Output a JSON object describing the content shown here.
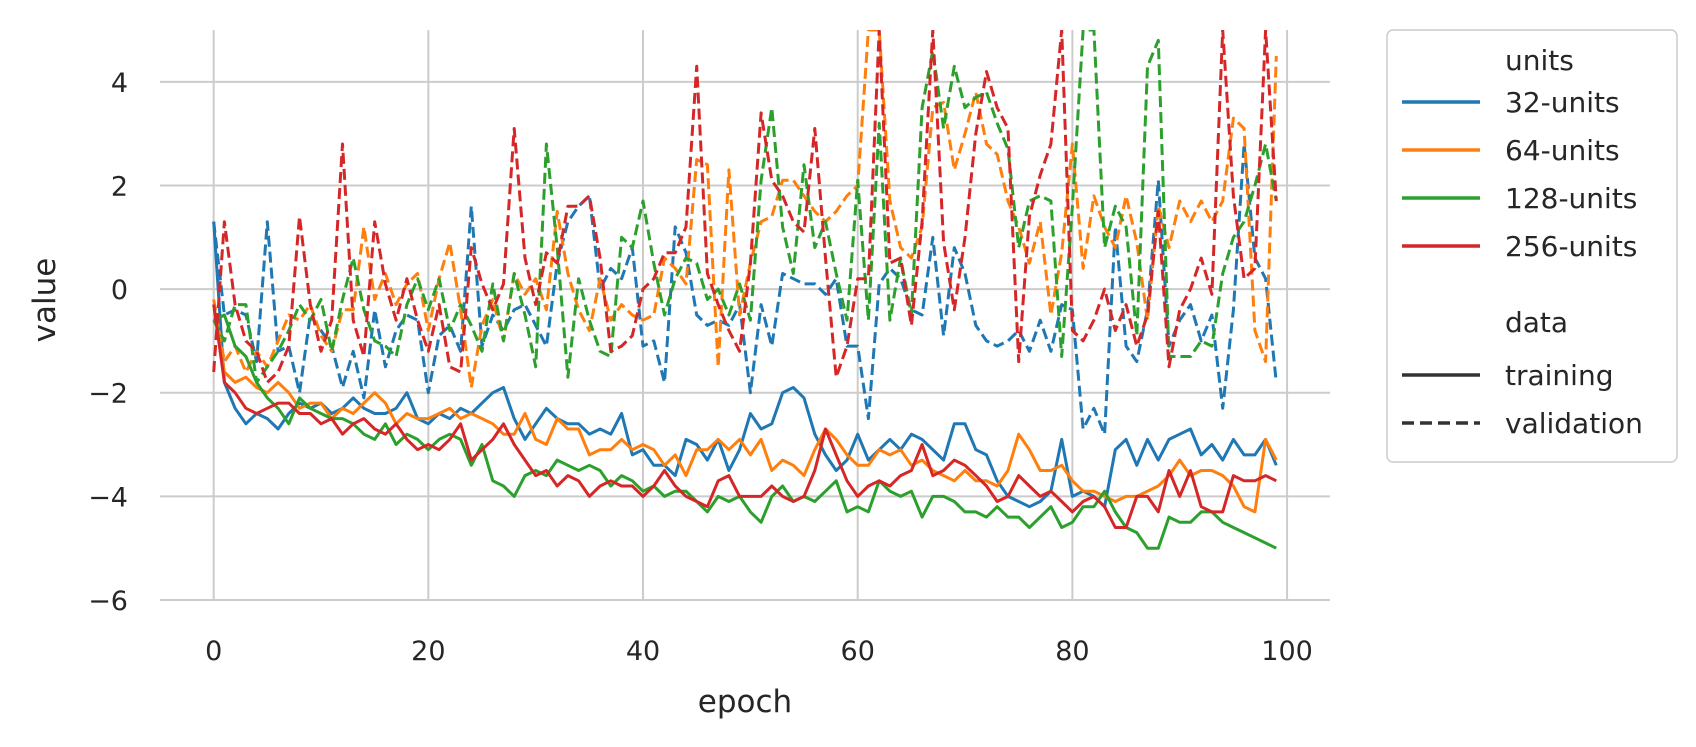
{
  "chart_data": {
    "type": "line",
    "title": "",
    "xlabel": "epoch",
    "ylabel": "value",
    "xlim": [
      -5,
      104
    ],
    "ylim": [
      -6,
      5
    ],
    "xticks": [
      0,
      20,
      40,
      60,
      80,
      100
    ],
    "yticks": [
      -6,
      -4,
      -2,
      0,
      2,
      4
    ],
    "ytick_labels": [
      "−6",
      "−4",
      "−2",
      "0",
      "2",
      "4"
    ],
    "grid": true,
    "legend_placement": "outside-right",
    "legend": {
      "hue_title": "units",
      "style_title": "data",
      "units": [
        {
          "name": "32-units",
          "color": "#1f77b4"
        },
        {
          "name": "64-units",
          "color": "#ff7f0e"
        },
        {
          "name": "128-units",
          "color": "#2ca02c"
        },
        {
          "name": "256-units",
          "color": "#d62728"
        }
      ],
      "styles": [
        {
          "name": "training",
          "dash": "solid"
        },
        {
          "name": "validation",
          "dash": "dashed"
        }
      ]
    },
    "x": [
      0,
      1,
      2,
      3,
      4,
      5,
      6,
      7,
      8,
      9,
      10,
      11,
      12,
      13,
      14,
      15,
      16,
      17,
      18,
      19,
      20,
      21,
      22,
      23,
      24,
      25,
      26,
      27,
      28,
      29,
      30,
      31,
      32,
      33,
      34,
      35,
      36,
      37,
      38,
      39,
      40,
      41,
      42,
      43,
      44,
      45,
      46,
      47,
      48,
      49,
      50,
      51,
      52,
      53,
      54,
      55,
      56,
      57,
      58,
      59,
      60,
      61,
      62,
      63,
      64,
      65,
      66,
      67,
      68,
      69,
      70,
      71,
      72,
      73,
      74,
      75,
      76,
      77,
      78,
      79,
      80,
      81,
      82,
      83,
      84,
      85,
      86,
      87,
      88,
      89,
      90,
      91,
      92,
      93,
      94,
      95,
      96,
      97,
      98,
      99
    ],
    "series": [
      {
        "units": "32-units",
        "data": "training",
        "color": "#1f77b4",
        "dash": "solid",
        "values": [
          1.3,
          -1.8,
          -2.3,
          -2.6,
          -2.4,
          -2.5,
          -2.7,
          -2.4,
          -2.2,
          -2.3,
          -2.2,
          -2.4,
          -2.3,
          -2.1,
          -2.3,
          -2.4,
          -2.4,
          -2.3,
          -2.0,
          -2.5,
          -2.6,
          -2.4,
          -2.5,
          -2.3,
          -2.4,
          -2.2,
          -2.0,
          -1.9,
          -2.5,
          -2.9,
          -2.6,
          -2.3,
          -2.5,
          -2.6,
          -2.6,
          -2.8,
          -2.7,
          -2.8,
          -2.4,
          -3.2,
          -3.1,
          -3.4,
          -3.4,
          -3.6,
          -2.9,
          -3.0,
          -3.3,
          -2.9,
          -3.5,
          -3.1,
          -2.4,
          -2.7,
          -2.6,
          -2.0,
          -1.9,
          -2.1,
          -2.8,
          -3.2,
          -3.5,
          -3.3,
          -2.8,
          -3.3,
          -3.1,
          -2.9,
          -3.1,
          -2.8,
          -2.9,
          -3.1,
          -3.3,
          -2.6,
          -2.6,
          -3.1,
          -3.2,
          -3.7,
          -4.0,
          -4.1,
          -4.2,
          -4.1,
          -3.9,
          -2.9,
          -4.0,
          -3.9,
          -4.0,
          -4.2,
          -3.1,
          -2.9,
          -3.4,
          -2.9,
          -3.3,
          -2.9,
          -2.8,
          -2.7,
          -3.2,
          -3.0,
          -3.3,
          -2.9,
          -3.2,
          -3.2,
          -2.9,
          -3.4
        ]
      },
      {
        "units": "32-units",
        "data": "validation",
        "color": "#1f77b4",
        "dash": "dashed",
        "values": [
          1.3,
          -0.5,
          -0.4,
          -0.5,
          -1.4,
          1.3,
          -1.2,
          -1.1,
          -2.0,
          -0.5,
          -0.8,
          -1.1,
          -1.9,
          -1.2,
          -2.1,
          -0.4,
          -1.5,
          -0.8,
          -0.5,
          -0.6,
          -2.0,
          -0.9,
          -0.7,
          -1.2,
          1.6,
          -1.1,
          -0.5,
          -0.8,
          -0.4,
          -0.3,
          -0.7,
          -1.1,
          0.5,
          1.3,
          1.6,
          1.8,
          0.0,
          0.4,
          0.2,
          0.8,
          -1.1,
          -1.0,
          -1.8,
          1.2,
          0.7,
          -0.5,
          -0.7,
          -0.6,
          -0.7,
          -0.3,
          -2.0,
          -0.3,
          -1.1,
          0.3,
          0.2,
          0.1,
          0.1,
          -0.1,
          0.2,
          -1.1,
          -1.1,
          -2.5,
          0.1,
          0.4,
          0.2,
          -0.4,
          -0.5,
          1.0,
          -0.9,
          0.8,
          0.3,
          -0.7,
          -1.0,
          -1.1,
          -1.0,
          -0.8,
          -1.2,
          -0.6,
          -1.2,
          -0.3,
          -0.4,
          -2.7,
          -2.3,
          -2.8,
          1.2,
          -1.1,
          -1.4,
          -0.4,
          2.1,
          -1.1,
          -0.6,
          -0.3,
          -1.0,
          -0.5,
          -2.3,
          -0.4,
          2.8,
          0.6,
          0.2,
          -1.8
        ]
      },
      {
        "units": "64-units",
        "data": "training",
        "color": "#ff7f0e",
        "dash": "solid",
        "values": [
          -0.3,
          -1.6,
          -1.8,
          -1.7,
          -1.9,
          -2.0,
          -1.8,
          -2.0,
          -2.3,
          -2.2,
          -2.2,
          -2.5,
          -2.3,
          -2.4,
          -2.2,
          -2.0,
          -2.2,
          -2.6,
          -2.4,
          -2.5,
          -2.5,
          -2.4,
          -2.3,
          -2.5,
          -2.4,
          -2.5,
          -2.6,
          -2.8,
          -2.8,
          -2.4,
          -2.9,
          -3.0,
          -2.5,
          -2.7,
          -2.7,
          -3.2,
          -3.1,
          -3.1,
          -2.9,
          -3.1,
          -3.0,
          -3.1,
          -3.4,
          -3.2,
          -3.6,
          -3.1,
          -3.1,
          -2.9,
          -3.1,
          -2.9,
          -3.2,
          -2.9,
          -3.5,
          -3.3,
          -3.4,
          -3.6,
          -3.1,
          -2.7,
          -2.9,
          -3.2,
          -3.4,
          -3.4,
          -3.1,
          -3.2,
          -3.1,
          -3.4,
          -3.3,
          -3.5,
          -3.6,
          -3.7,
          -3.5,
          -3.7,
          -3.7,
          -3.8,
          -3.5,
          -2.8,
          -3.1,
          -3.5,
          -3.5,
          -3.4,
          -3.7,
          -3.9,
          -3.9,
          -4.0,
          -4.1,
          -4.0,
          -4.0,
          -3.9,
          -3.8,
          -3.6,
          -3.3,
          -3.6,
          -3.5,
          -3.5,
          -3.6,
          -3.8,
          -4.2,
          -4.3,
          -2.9,
          -3.3
        ]
      },
      {
        "units": "64-units",
        "data": "validation",
        "color": "#ff7f0e",
        "dash": "dashed",
        "values": [
          -0.2,
          -1.4,
          -1.1,
          -1.6,
          -1.2,
          -1.5,
          -1.0,
          -0.5,
          -0.6,
          -0.3,
          -0.9,
          -1.2,
          -0.4,
          -0.4,
          1.2,
          -0.2,
          0.3,
          -0.3,
          0.1,
          0.3,
          -0.8,
          0.2,
          0.9,
          -0.4,
          -1.9,
          -0.7,
          -0.2,
          -1.0,
          0.3,
          -0.1,
          0.2,
          -0.4,
          1.5,
          0.3,
          -0.4,
          -0.8,
          0.2,
          -0.6,
          -0.3,
          -0.5,
          -0.6,
          -0.5,
          0.6,
          0.4,
          0.1,
          2.5,
          2.4,
          -1.5,
          2.3,
          -0.5,
          0.5,
          1.3,
          1.4,
          2.1,
          2.1,
          1.8,
          1.5,
          1.3,
          1.5,
          1.8,
          2.0,
          5.0,
          5.0,
          1.7,
          0.8,
          0.6,
          1.2,
          3.5,
          3.6,
          2.3,
          3.0,
          3.8,
          2.8,
          2.6,
          1.7,
          1.2,
          0.5,
          1.3,
          -0.5,
          0.7,
          2.8,
          0.4,
          1.8,
          1.2,
          0.8,
          1.8,
          0.9,
          -0.6,
          1.6,
          0.8,
          1.7,
          1.3,
          1.7,
          1.3,
          1.7,
          3.3,
          3.1,
          -0.8,
          -1.4,
          4.5
        ]
      },
      {
        "units": "128-units",
        "data": "training",
        "color": "#2ca02c",
        "dash": "solid",
        "values": [
          -0.6,
          -0.5,
          -1.1,
          -1.3,
          -1.8,
          -2.1,
          -2.3,
          -2.6,
          -2.1,
          -2.3,
          -2.4,
          -2.5,
          -2.5,
          -2.6,
          -2.8,
          -2.9,
          -2.6,
          -3.0,
          -2.8,
          -2.9,
          -3.1,
          -2.9,
          -2.8,
          -2.9,
          -3.4,
          -3.0,
          -3.7,
          -3.8,
          -4.0,
          -3.6,
          -3.5,
          -3.6,
          -3.3,
          -3.4,
          -3.5,
          -3.4,
          -3.5,
          -3.8,
          -3.6,
          -3.7,
          -3.9,
          -3.8,
          -4.0,
          -3.9,
          -3.9,
          -4.1,
          -4.3,
          -4.0,
          -4.1,
          -4.0,
          -4.3,
          -4.5,
          -4.0,
          -3.8,
          -4.1,
          -4.0,
          -4.1,
          -3.9,
          -3.7,
          -4.3,
          -4.2,
          -4.3,
          -3.7,
          -3.9,
          -4.0,
          -3.9,
          -4.4,
          -4.0,
          -4.0,
          -4.1,
          -4.3,
          -4.3,
          -4.4,
          -4.2,
          -4.4,
          -4.4,
          -4.6,
          -4.4,
          -4.2,
          -4.6,
          -4.5,
          -4.2,
          -4.2,
          -3.9,
          -4.3,
          -4.6,
          -4.7,
          -5.0,
          -5.0,
          -4.4,
          -4.5,
          -4.5,
          -4.3,
          -4.3,
          -4.5,
          -4.6,
          -4.7,
          -4.8,
          -4.9,
          -5.0
        ]
      },
      {
        "units": "128-units",
        "data": "validation",
        "color": "#2ca02c",
        "dash": "dashed",
        "values": [
          -0.6,
          -1.0,
          -0.3,
          -0.3,
          -1.8,
          -1.5,
          -1.2,
          -0.8,
          -0.3,
          -0.6,
          -0.2,
          -1.2,
          -0.2,
          0.6,
          -0.4,
          -1.0,
          -1.1,
          -1.3,
          -0.3,
          0.2,
          -0.4,
          0.2,
          -0.8,
          -0.3,
          -0.7,
          -1.2,
          0.1,
          -1.0,
          0.3,
          -0.5,
          -1.5,
          2.8,
          0.8,
          -1.7,
          0.2,
          -0.6,
          -1.2,
          -1.3,
          1.0,
          0.8,
          1.7,
          0.5,
          -0.5,
          0.2,
          0.6,
          0.5,
          -0.2,
          0.0,
          -0.5,
          0.1,
          -0.6,
          2.1,
          3.5,
          1.2,
          0.3,
          2.4,
          0.8,
          1.3,
          0.3,
          -0.6,
          2.1,
          -0.6,
          3.2,
          -0.6,
          0.6,
          -0.5,
          3.5,
          4.6,
          3.1,
          4.3,
          3.5,
          3.7,
          3.8,
          3.2,
          2.7,
          0.8,
          1.7,
          1.8,
          1.7,
          -1.3,
          1.6,
          5.0,
          5.0,
          0.8,
          1.6,
          1.2,
          -0.9,
          4.3,
          4.8,
          -1.3,
          -1.3,
          -1.3,
          -1.0,
          -1.1,
          0.3,
          1.0,
          1.3,
          2.0,
          2.8,
          1.7
        ]
      },
      {
        "units": "256-units",
        "data": "training",
        "color": "#d62728",
        "dash": "solid",
        "values": [
          -0.3,
          -1.8,
          -2.0,
          -2.3,
          -2.4,
          -2.3,
          -2.2,
          -2.2,
          -2.4,
          -2.4,
          -2.6,
          -2.5,
          -2.8,
          -2.6,
          -2.5,
          -2.7,
          -2.8,
          -2.6,
          -2.9,
          -3.1,
          -3.0,
          -3.1,
          -2.9,
          -2.6,
          -3.3,
          -3.1,
          -2.9,
          -2.6,
          -3.0,
          -3.3,
          -3.6,
          -3.5,
          -3.8,
          -3.6,
          -3.7,
          -4.0,
          -3.8,
          -3.7,
          -3.8,
          -3.8,
          -4.0,
          -3.8,
          -3.5,
          -3.8,
          -4.0,
          -4.1,
          -4.2,
          -3.7,
          -3.6,
          -4.0,
          -4.0,
          -4.0,
          -3.8,
          -4.0,
          -4.1,
          -4.0,
          -3.5,
          -2.7,
          -3.2,
          -3.7,
          -4.0,
          -3.8,
          -3.7,
          -3.8,
          -3.6,
          -3.5,
          -3.0,
          -3.6,
          -3.5,
          -3.3,
          -3.4,
          -3.6,
          -3.8,
          -4.1,
          -4.0,
          -3.6,
          -3.8,
          -4.0,
          -3.9,
          -4.1,
          -4.3,
          -4.1,
          -4.0,
          -4.2,
          -4.6,
          -4.6,
          -4.0,
          -4.0,
          -4.3,
          -3.5,
          -4.0,
          -3.5,
          -4.2,
          -4.3,
          -4.3,
          -3.6,
          -3.7,
          -3.7,
          -3.6,
          -3.7
        ]
      },
      {
        "units": "256-units",
        "data": "validation",
        "color": "#d62728",
        "dash": "dashed",
        "values": [
          -1.6,
          1.3,
          -0.3,
          -1.0,
          -1.2,
          -1.8,
          -1.6,
          -1.1,
          1.4,
          -0.3,
          -1.2,
          -0.6,
          2.8,
          -0.6,
          -1.3,
          1.3,
          0.1,
          -0.6,
          0.2,
          -0.6,
          -1.2,
          -0.3,
          -1.5,
          -1.6,
          0.8,
          0.1,
          -0.4,
          0.1,
          3.1,
          0.6,
          -0.3,
          0.7,
          0.5,
          1.6,
          1.6,
          1.8,
          0.6,
          -1.2,
          -1.1,
          -0.9,
          0.0,
          0.2,
          0.7,
          0.7,
          1.2,
          4.3,
          0.3,
          -0.3,
          -0.8,
          -1.2,
          0.5,
          3.4,
          2.1,
          1.8,
          1.3,
          1.1,
          3.1,
          0.6,
          -1.7,
          -1.1,
          0.2,
          0.2,
          5.0,
          0.5,
          0.6,
          -0.7,
          1.3,
          5.0,
          0.9,
          -0.4,
          1.0,
          3.0,
          4.2,
          3.5,
          3.1,
          -1.4,
          1.4,
          2.2,
          2.8,
          5.0,
          -0.8,
          -1.0,
          -0.6,
          0.0,
          -0.8,
          -0.3,
          -1.1,
          -0.5,
          1.5,
          -1.5,
          -0.4,
          0.0,
          0.6,
          -0.1,
          5.0,
          1.8,
          0.2,
          0.4,
          5.0,
          1.7
        ]
      }
    ]
  }
}
